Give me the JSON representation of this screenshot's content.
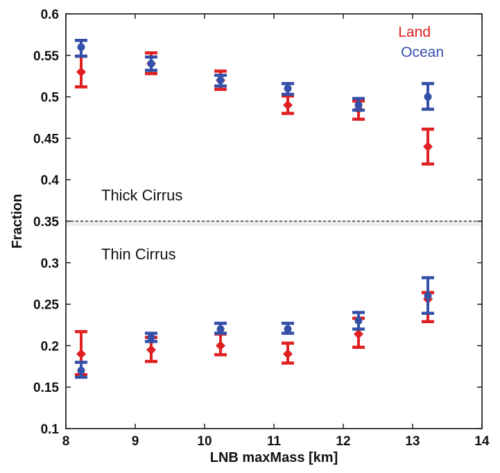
{
  "chart_data": {
    "type": "scatter",
    "xlabel": "LNB maxMass [km]",
    "ylabel": "Fraction",
    "xlim": [
      8,
      14
    ],
    "ylim": [
      0.1,
      0.6
    ],
    "x_ticks": [
      "8",
      "9",
      "10",
      "11",
      "12",
      "13",
      "14"
    ],
    "y_ticks": [
      "0.1",
      "0.15",
      "0.2",
      "0.25",
      "0.3",
      "0.35",
      "0.4",
      "0.45",
      "0.5",
      "0.55",
      "0.6"
    ],
    "grid": false,
    "legend_position": "top-right",
    "reference_line": {
      "y": 0.35,
      "style": "dashed"
    },
    "annotations": [
      "Thick Cirrus",
      "Thin Cirrus"
    ],
    "series": [
      {
        "name": "Land",
        "color": "#e02020",
        "marker": "diamond",
        "groups": [
          {
            "region": "Thick Cirrus",
            "points": [
              {
                "x": 8.22,
                "y": 0.53,
                "err_low": 0.512,
                "err_high": 0.549
              },
              {
                "x": 9.23,
                "y": 0.54,
                "err_low": 0.528,
                "err_high": 0.553
              },
              {
                "x": 10.23,
                "y": 0.52,
                "err_low": 0.509,
                "err_high": 0.531
              },
              {
                "x": 11.2,
                "y": 0.49,
                "err_low": 0.48,
                "err_high": 0.501
              },
              {
                "x": 12.22,
                "y": 0.485,
                "err_low": 0.473,
                "err_high": 0.495
              },
              {
                "x": 13.22,
                "y": 0.44,
                "err_low": 0.419,
                "err_high": 0.461
              }
            ]
          },
          {
            "region": "Thin Cirrus",
            "points": [
              {
                "x": 8.22,
                "y": 0.19,
                "err_low": 0.165,
                "err_high": 0.217
              },
              {
                "x": 9.23,
                "y": 0.195,
                "err_low": 0.181,
                "err_high": 0.21
              },
              {
                "x": 10.23,
                "y": 0.2,
                "err_low": 0.189,
                "err_high": 0.214
              },
              {
                "x": 11.2,
                "y": 0.19,
                "err_low": 0.179,
                "err_high": 0.203
              },
              {
                "x": 12.22,
                "y": 0.214,
                "err_low": 0.198,
                "err_high": 0.233
              },
              {
                "x": 13.22,
                "y": 0.256,
                "err_low": 0.229,
                "err_high": 0.264
              }
            ]
          }
        ]
      },
      {
        "name": "Ocean",
        "color": "#3550a8",
        "marker": "circle",
        "groups": [
          {
            "region": "Thick Cirrus",
            "points": [
              {
                "x": 8.22,
                "y": 0.56,
                "err_low": 0.549,
                "err_high": 0.568
              },
              {
                "x": 9.23,
                "y": 0.54,
                "err_low": 0.532,
                "err_high": 0.548
              },
              {
                "x": 10.23,
                "y": 0.52,
                "err_low": 0.513,
                "err_high": 0.526
              },
              {
                "x": 11.2,
                "y": 0.51,
                "err_low": 0.503,
                "err_high": 0.516
              },
              {
                "x": 12.22,
                "y": 0.49,
                "err_low": 0.484,
                "err_high": 0.498
              },
              {
                "x": 13.22,
                "y": 0.5,
                "err_low": 0.485,
                "err_high": 0.516
              }
            ]
          },
          {
            "region": "Thin Cirrus",
            "points": [
              {
                "x": 8.22,
                "y": 0.17,
                "err_low": 0.162,
                "err_high": 0.18
              },
              {
                "x": 9.23,
                "y": 0.21,
                "err_low": 0.205,
                "err_high": 0.215
              },
              {
                "x": 10.23,
                "y": 0.22,
                "err_low": 0.215,
                "err_high": 0.227
              },
              {
                "x": 11.2,
                "y": 0.22,
                "err_low": 0.215,
                "err_high": 0.227
              },
              {
                "x": 12.22,
                "y": 0.23,
                "err_low": 0.22,
                "err_high": 0.24
              },
              {
                "x": 13.22,
                "y": 0.26,
                "err_low": 0.239,
                "err_high": 0.282
              }
            ]
          }
        ]
      }
    ]
  }
}
